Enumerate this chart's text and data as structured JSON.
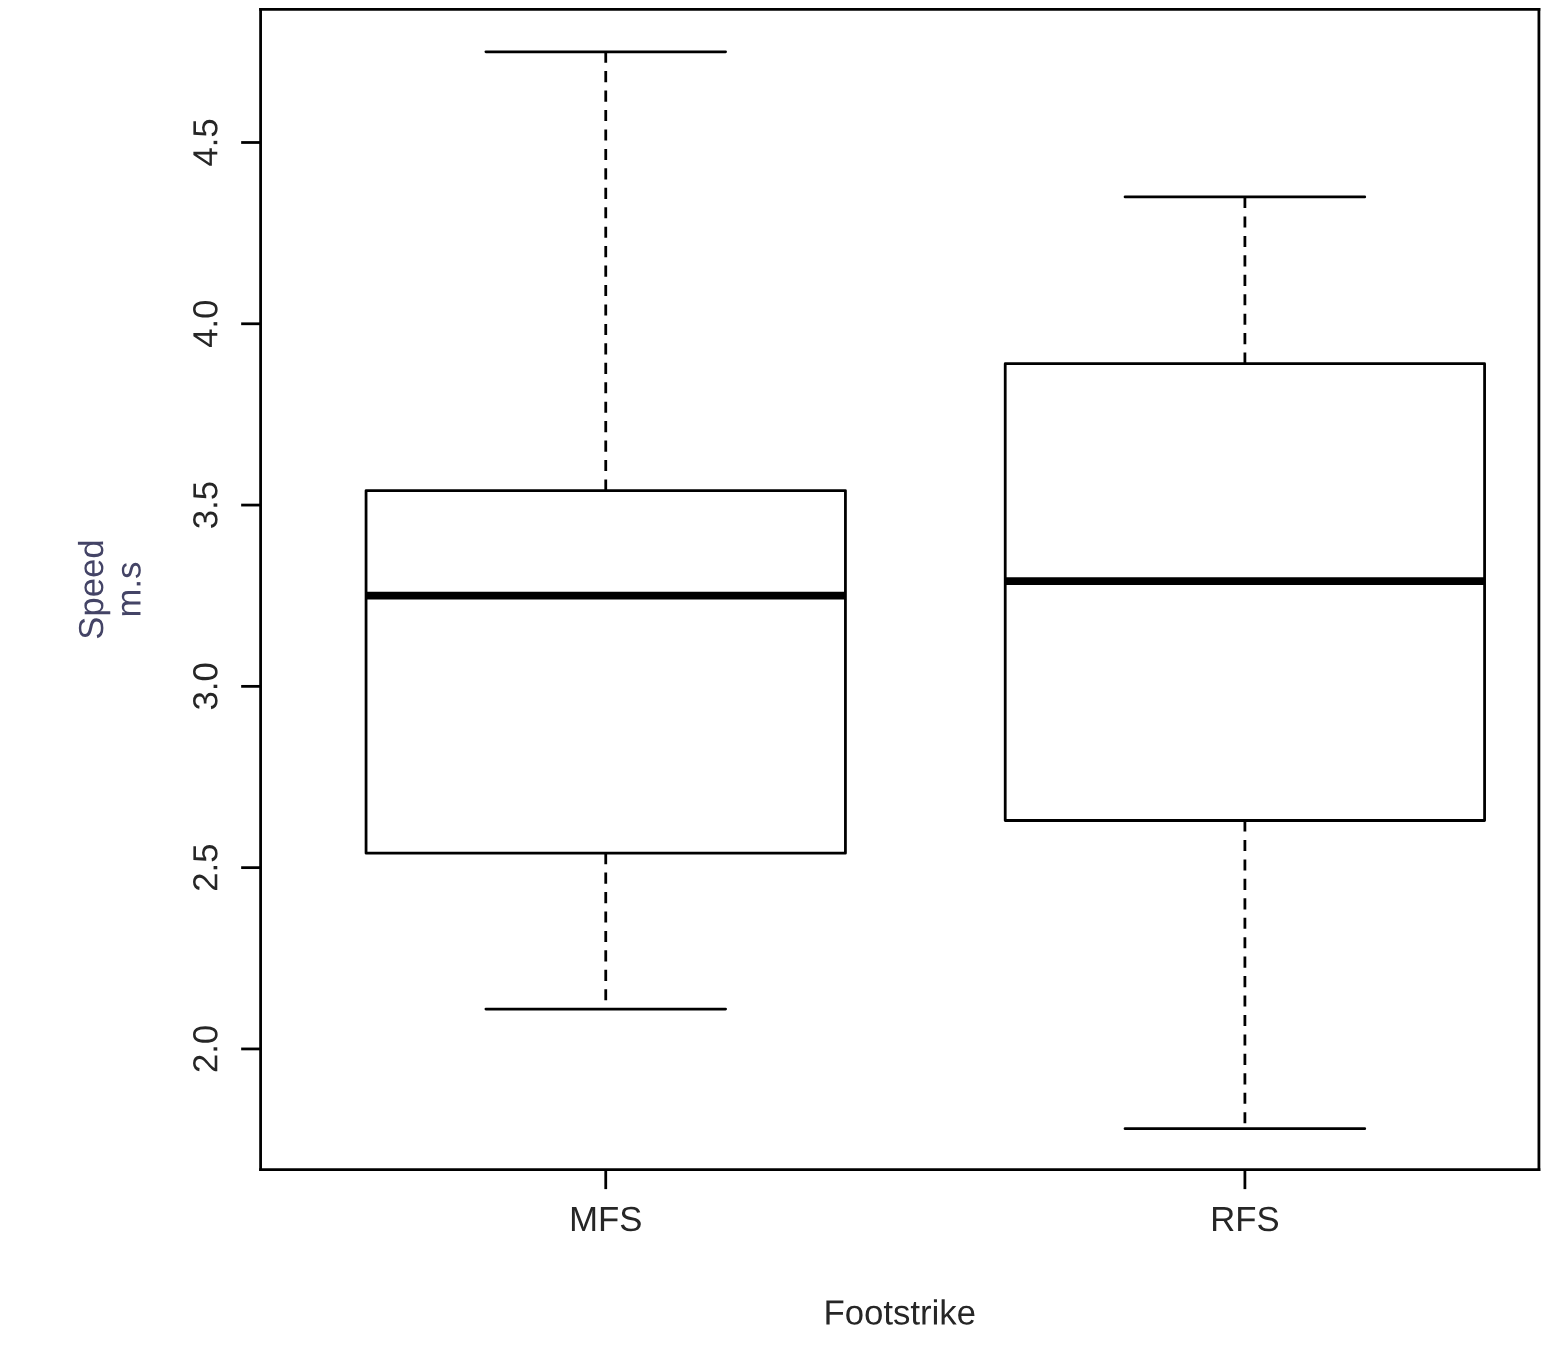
{
  "chart_data": {
    "type": "box",
    "xlabel": "Footstrike",
    "ylabel": "Speed\nm.s",
    "categories": [
      "MFS",
      "RFS"
    ],
    "boxes": [
      {
        "low": 2.11,
        "q1": 2.54,
        "median": 3.25,
        "q3": 3.54,
        "high": 4.75
      },
      {
        "low": 1.78,
        "q1": 2.63,
        "median": 3.29,
        "q3": 3.89,
        "high": 4.35
      }
    ],
    "ylim": [
      1.667,
      4.867
    ],
    "yticks": [
      {
        "value": 2,
        "label": "2.0"
      },
      2.5,
      {
        "value": 3,
        "label": "3.0"
      },
      3.5,
      {
        "value": 4,
        "label": "4.0"
      },
      4.5
    ]
  }
}
